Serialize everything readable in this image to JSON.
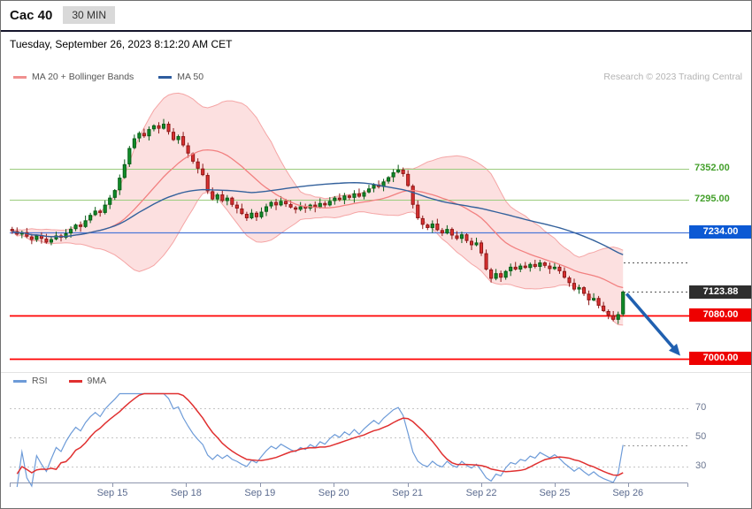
{
  "header": {
    "title": "Cac 40",
    "timeframe": "30 MIN"
  },
  "date_line": "Tuesday, September 26, 2023 8:12:20 AM CET",
  "credit": "Research © 2023 Trading Central",
  "legend": {
    "ma20": "MA 20 + Bollinger Bands",
    "ma50": "MA 50"
  },
  "rsi_legend": {
    "rsi": "RSI",
    "ma": "9MA"
  },
  "colors": {
    "up_candle": "#10902a",
    "up_border": "#0a5c18",
    "down_candle": "#de3030",
    "down_border": "#8c1a1a",
    "band_fill": "rgba(246,153,153,0.30)",
    "band_edge": "rgba(242,140,140,0.75)",
    "ma20_line": "#f28080",
    "ma50_line": "#33619c",
    "level_green": "#9bcc7e",
    "level_green_text": "#44a02c",
    "level_blue": "#4d79d8",
    "level_blue_badge": "#0c59d4",
    "level_red": "#ff0000",
    "level_red_badge": "#ee0000",
    "last_badge": "#2e2e2e",
    "rsi_line": "#6d9bd8",
    "rsi_ma_line": "#e03030",
    "arrow": "#2060b0",
    "axis": "#8e96ad"
  },
  "chart_data": {
    "type": "candlestick",
    "instrument": "Cac 40",
    "interval": "30 MIN",
    "title": "Cac 40 — 30 MIN with MA 20 + Bollinger Bands, MA 50, RSI(14) + 9MA",
    "y_range": [
      6975,
      7499
    ],
    "x_axis": {
      "labels": [
        {
          "label": "Sep 15",
          "i": 20.5
        },
        {
          "label": "Sep 18",
          "i": 35.6
        },
        {
          "label": "Sep 19",
          "i": 50.7
        },
        {
          "label": "Sep 20",
          "i": 65.8
        },
        {
          "label": "Sep 21",
          "i": 80.9
        },
        {
          "label": "Sep 22",
          "i": 96
        },
        {
          "label": "Sep 25",
          "i": 111
        },
        {
          "label": "Sep 26",
          "i": 126
        }
      ]
    },
    "levels": [
      {
        "value": 7352.0,
        "label": "7352.00",
        "kind": "resistance",
        "style": "green"
      },
      {
        "value": 7295.0,
        "label": "7295.00",
        "kind": "resistance",
        "style": "green"
      },
      {
        "value": 7234.0,
        "label": "7234.00",
        "kind": "pivot",
        "style": "blue"
      },
      {
        "value": 7123.88,
        "label": "7123.88",
        "kind": "last-price",
        "style": "dark"
      },
      {
        "value": 7080.0,
        "label": "7080.00",
        "kind": "support",
        "style": "red"
      },
      {
        "value": 7000.0,
        "label": "7000.00",
        "kind": "target",
        "style": "red"
      }
    ],
    "leader_values": [
      7178,
      7123.88
    ],
    "last_price": 7123.88,
    "overlays": {
      "ma20_period": 20,
      "bollinger_k": 2,
      "ma50_period": 50
    },
    "arrow": {
      "from_price": 7120,
      "to_price": 7005,
      "direction": "down"
    },
    "rsi": {
      "period": 14,
      "ma_period": 9,
      "gridlines": [
        70,
        50,
        30
      ]
    },
    "candles": [
      [
        7240,
        7244,
        7231,
        7236
      ],
      [
        7236,
        7243,
        7228,
        7230
      ],
      [
        7230,
        7237,
        7223,
        7234
      ],
      [
        7234,
        7242,
        7223,
        7226
      ],
      [
        7226,
        7231,
        7212,
        7220
      ],
      [
        7220,
        7230,
        7216,
        7228
      ],
      [
        7228,
        7234,
        7213,
        7222
      ],
      [
        7222,
        7231,
        7213,
        7215
      ],
      [
        7215,
        7225,
        7210,
        7221
      ],
      [
        7221,
        7235,
        7219,
        7228
      ],
      [
        7228,
        7231,
        7217,
        7224
      ],
      [
        7224,
        7240,
        7221,
        7232
      ],
      [
        7232,
        7245,
        7224,
        7240
      ],
      [
        7240,
        7250,
        7236,
        7248
      ],
      [
        7248,
        7254,
        7235,
        7244
      ],
      [
        7244,
        7265,
        7242,
        7256
      ],
      [
        7256,
        7270,
        7251,
        7266
      ],
      [
        7266,
        7281,
        7264,
        7274
      ],
      [
        7274,
        7277,
        7263,
        7270
      ],
      [
        7270,
        7293,
        7267,
        7285
      ],
      [
        7285,
        7303,
        7277,
        7298
      ],
      [
        7298,
        7314,
        7294,
        7312
      ],
      [
        7312,
        7341,
        7303,
        7335
      ],
      [
        7335,
        7369,
        7333,
        7360
      ],
      [
        7360,
        7394,
        7355,
        7390
      ],
      [
        7390,
        7415,
        7388,
        7408
      ],
      [
        7408,
        7421,
        7401,
        7418
      ],
      [
        7418,
        7426,
        7409,
        7412
      ],
      [
        7412,
        7430,
        7404,
        7425
      ],
      [
        7425,
        7434,
        7421,
        7432
      ],
      [
        7432,
        7438,
        7417,
        7426
      ],
      [
        7426,
        7444,
        7424,
        7435
      ],
      [
        7435,
        7439,
        7415,
        7420
      ],
      [
        7420,
        7427,
        7403,
        7405
      ],
      [
        7405,
        7415,
        7398,
        7412
      ],
      [
        7412,
        7420,
        7392,
        7395
      ],
      [
        7395,
        7400,
        7372,
        7380
      ],
      [
        7380,
        7382,
        7361,
        7365
      ],
      [
        7365,
        7371,
        7343,
        7352
      ],
      [
        7352,
        7361,
        7338,
        7340
      ],
      [
        7340,
        7344,
        7305,
        7310
      ],
      [
        7310,
        7317,
        7293,
        7295
      ],
      [
        7295,
        7307,
        7288,
        7304
      ],
      [
        7304,
        7312,
        7289,
        7292
      ],
      [
        7292,
        7303,
        7284,
        7298
      ],
      [
        7298,
        7300,
        7281,
        7285
      ],
      [
        7285,
        7291,
        7269,
        7278
      ],
      [
        7278,
        7287,
        7266,
        7268
      ],
      [
        7268,
        7272,
        7255,
        7260
      ],
      [
        7260,
        7277,
        7258,
        7270
      ],
      [
        7270,
        7273,
        7255,
        7262
      ],
      [
        7262,
        7280,
        7259,
        7272
      ],
      [
        7272,
        7287,
        7264,
        7282
      ],
      [
        7282,
        7292,
        7278,
        7290
      ],
      [
        7290,
        7296,
        7275,
        7284
      ],
      [
        7284,
        7301,
        7282,
        7292
      ],
      [
        7292,
        7296,
        7281,
        7286
      ],
      [
        7286,
        7293,
        7278,
        7280
      ],
      [
        7280,
        7283,
        7269,
        7276
      ],
      [
        7276,
        7290,
        7273,
        7282
      ],
      [
        7282,
        7287,
        7270,
        7278
      ],
      [
        7278,
        7287,
        7274,
        7285
      ],
      [
        7285,
        7291,
        7271,
        7280
      ],
      [
        7280,
        7297,
        7278,
        7288
      ],
      [
        7288,
        7292,
        7279,
        7284
      ],
      [
        7284,
        7299,
        7282,
        7292
      ],
      [
        7292,
        7301,
        7285,
        7298
      ],
      [
        7298,
        7306,
        7291,
        7294
      ],
      [
        7294,
        7307,
        7286,
        7302
      ],
      [
        7302,
        7304,
        7294,
        7298
      ],
      [
        7298,
        7312,
        7289,
        7306
      ],
      [
        7306,
        7315,
        7298,
        7300
      ],
      [
        7300,
        7312,
        7295,
        7308
      ],
      [
        7308,
        7322,
        7306,
        7315
      ],
      [
        7315,
        7325,
        7308,
        7322
      ],
      [
        7322,
        7330,
        7315,
        7318
      ],
      [
        7318,
        7333,
        7310,
        7328
      ],
      [
        7328,
        7338,
        7324,
        7336
      ],
      [
        7336,
        7351,
        7327,
        7345
      ],
      [
        7345,
        7359,
        7343,
        7350
      ],
      [
        7350,
        7354,
        7337,
        7342
      ],
      [
        7342,
        7349,
        7318,
        7320
      ],
      [
        7320,
        7323,
        7278,
        7285
      ],
      [
        7285,
        7293,
        7257,
        7260
      ],
      [
        7260,
        7265,
        7240,
        7248
      ],
      [
        7248,
        7250,
        7238,
        7242
      ],
      [
        7242,
        7256,
        7233,
        7250
      ],
      [
        7250,
        7259,
        7236,
        7238
      ],
      [
        7238,
        7242,
        7227,
        7232
      ],
      [
        7232,
        7247,
        7230,
        7240
      ],
      [
        7240,
        7243,
        7221,
        7228
      ],
      [
        7228,
        7236,
        7219,
        7222
      ],
      [
        7222,
        7235,
        7214,
        7230
      ],
      [
        7230,
        7232,
        7214,
        7218
      ],
      [
        7218,
        7224,
        7201,
        7210
      ],
      [
        7210,
        7224,
        7208,
        7215
      ],
      [
        7215,
        7219,
        7190,
        7195
      ],
      [
        7195,
        7202,
        7163,
        7165
      ],
      [
        7165,
        7168,
        7141,
        7148
      ],
      [
        7148,
        7166,
        7145,
        7158
      ],
      [
        7158,
        7163,
        7142,
        7150
      ],
      [
        7150,
        7164,
        7146,
        7162
      ],
      [
        7162,
        7176,
        7153,
        7170
      ],
      [
        7170,
        7179,
        7163,
        7165
      ],
      [
        7165,
        7176,
        7160,
        7172
      ],
      [
        7172,
        7179,
        7166,
        7168
      ],
      [
        7168,
        7178,
        7161,
        7175
      ],
      [
        7175,
        7183,
        7167,
        7170
      ],
      [
        7170,
        7183,
        7162,
        7178
      ],
      [
        7178,
        7180,
        7168,
        7172
      ],
      [
        7172,
        7178,
        7157,
        7166
      ],
      [
        7166,
        7179,
        7164,
        7170
      ],
      [
        7170,
        7174,
        7157,
        7162
      ],
      [
        7162,
        7169,
        7148,
        7150
      ],
      [
        7150,
        7153,
        7133,
        7140
      ],
      [
        7140,
        7148,
        7125,
        7128
      ],
      [
        7128,
        7137,
        7120,
        7132
      ],
      [
        7132,
        7134,
        7116,
        7120
      ],
      [
        7120,
        7126,
        7099,
        7108
      ],
      [
        7108,
        7121,
        7106,
        7112
      ],
      [
        7112,
        7116,
        7093,
        7098
      ],
      [
        7098,
        7105,
        7086,
        7088
      ],
      [
        7088,
        7091,
        7073,
        7080
      ],
      [
        7080,
        7088,
        7069,
        7072
      ],
      [
        7072,
        7087,
        7064,
        7082
      ],
      [
        7082,
        7126,
        7078,
        7123.88
      ]
    ]
  }
}
